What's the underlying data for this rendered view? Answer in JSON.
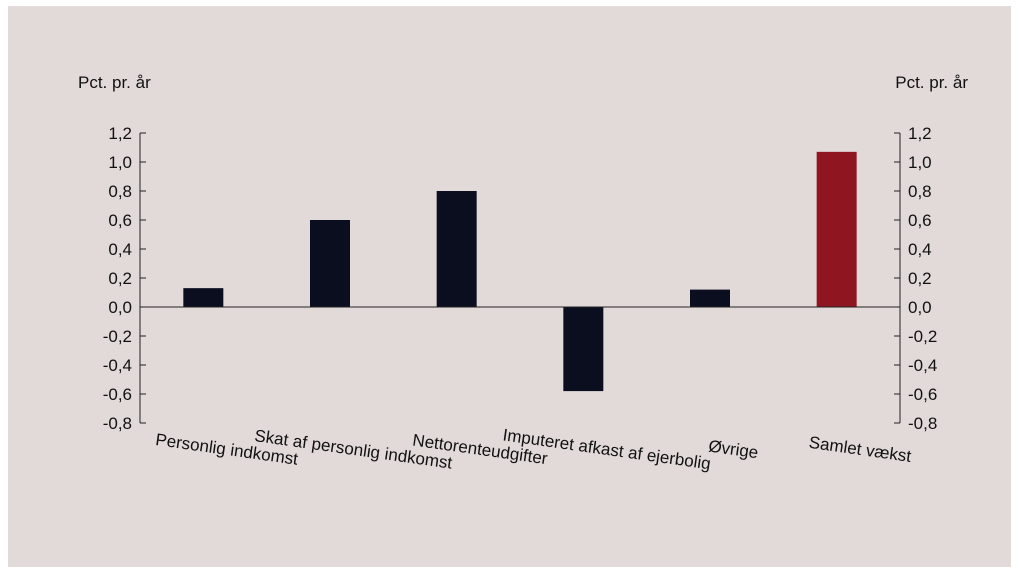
{
  "colors": {
    "background": "#e2dad8",
    "bar": "#0b0e1e",
    "highlight": "#8f1620",
    "axis": "#222222"
  },
  "chart_data": {
    "type": "bar",
    "ylabel_left": "Pct. pr. år",
    "ylabel_right": "Pct. pr. år",
    "ylim": [
      -0.8,
      1.2
    ],
    "yticks": [
      1.2,
      1.0,
      0.8,
      0.6,
      0.4,
      0.2,
      0.0,
      -0.2,
      -0.4,
      -0.6,
      -0.8
    ],
    "ytick_labels": [
      "1,2",
      "1,0",
      "0,8",
      "0,6",
      "0,4",
      "0,2",
      "0,0",
      "-0,2",
      "-0,4",
      "-0,6",
      "-0,8"
    ],
    "categories": [
      "Personlig indkomst",
      "Skat af personlig indkomst",
      "Nettorenteudgifter",
      "Imputeret afkast af ejerbolig",
      "Øvrige",
      "Samlet vækst"
    ],
    "values": [
      0.13,
      0.6,
      0.8,
      -0.58,
      0.12,
      1.07
    ],
    "highlight_index": 5,
    "grid": false,
    "legend": false
  }
}
